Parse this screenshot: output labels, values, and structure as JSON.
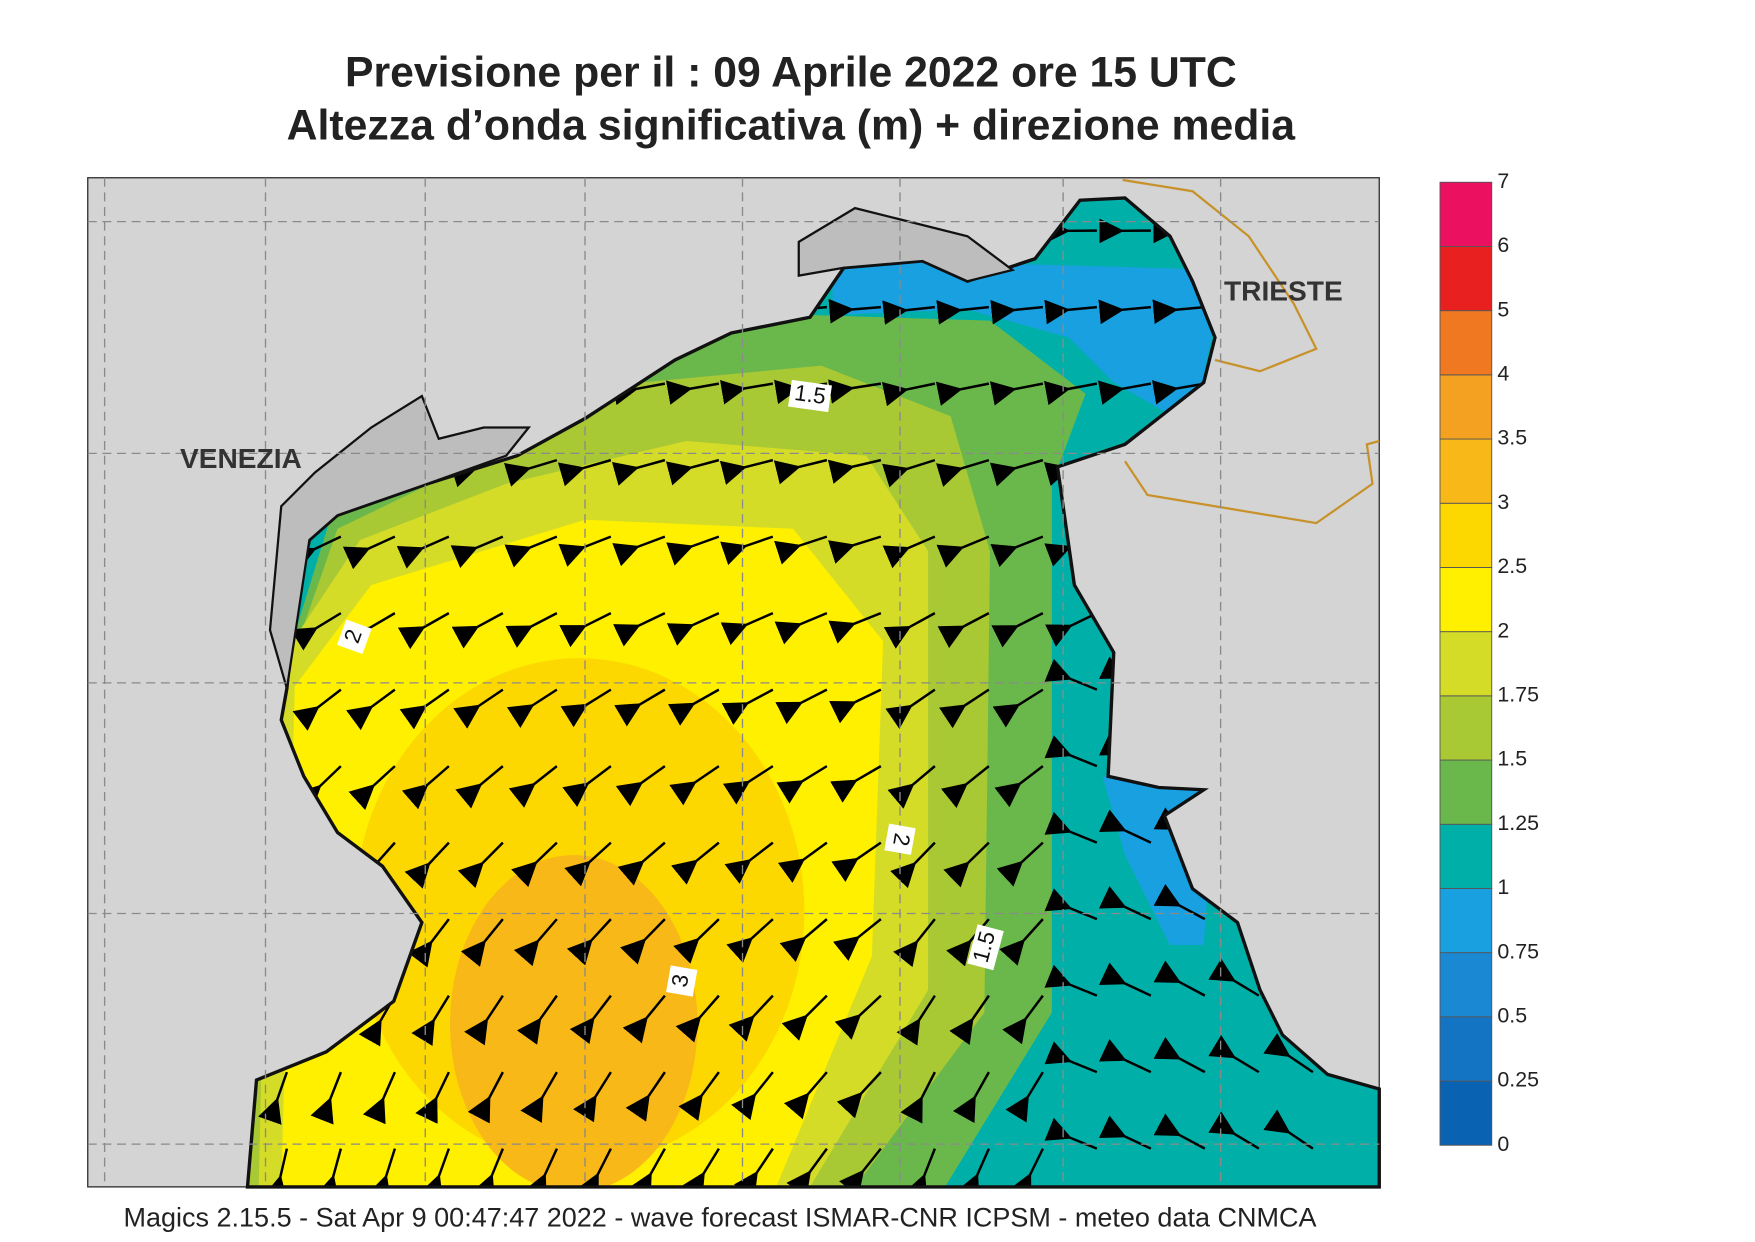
{
  "header": {
    "title": "Previsione per il  :  09   Aprile  2022   ore 15 UTC",
    "subtitle": "Altezza d’onda significativa (m) + direzione media"
  },
  "map": {
    "cities": [
      "VENEZIA",
      "TRIESTE"
    ],
    "contour_labels": [
      "1.5",
      "2",
      "2",
      "1.5",
      "3"
    ]
  },
  "colorbar": {
    "levels": [
      0,
      0.25,
      0.5,
      0.75,
      1,
      1.25,
      1.5,
      1.75,
      2,
      2.5,
      3,
      3.5,
      4,
      5,
      6,
      7
    ],
    "colors": [
      "#0a62b2",
      "#1474c4",
      "#1a88d2",
      "#18a0e0",
      "#00b0a8",
      "#6ab84c",
      "#a8c834",
      "#d4dc28",
      "#fff000",
      "#fcd800",
      "#f8b818",
      "#f4a020",
      "#f07820",
      "#e82020",
      "#ec1060"
    ]
  },
  "footer": {
    "text": "Magics 2.15.5 - Sat Apr  9 00:47:47 2022 - wave forecast  ISMAR-CNR  ICPSM - meteo data    CNMCA"
  }
}
